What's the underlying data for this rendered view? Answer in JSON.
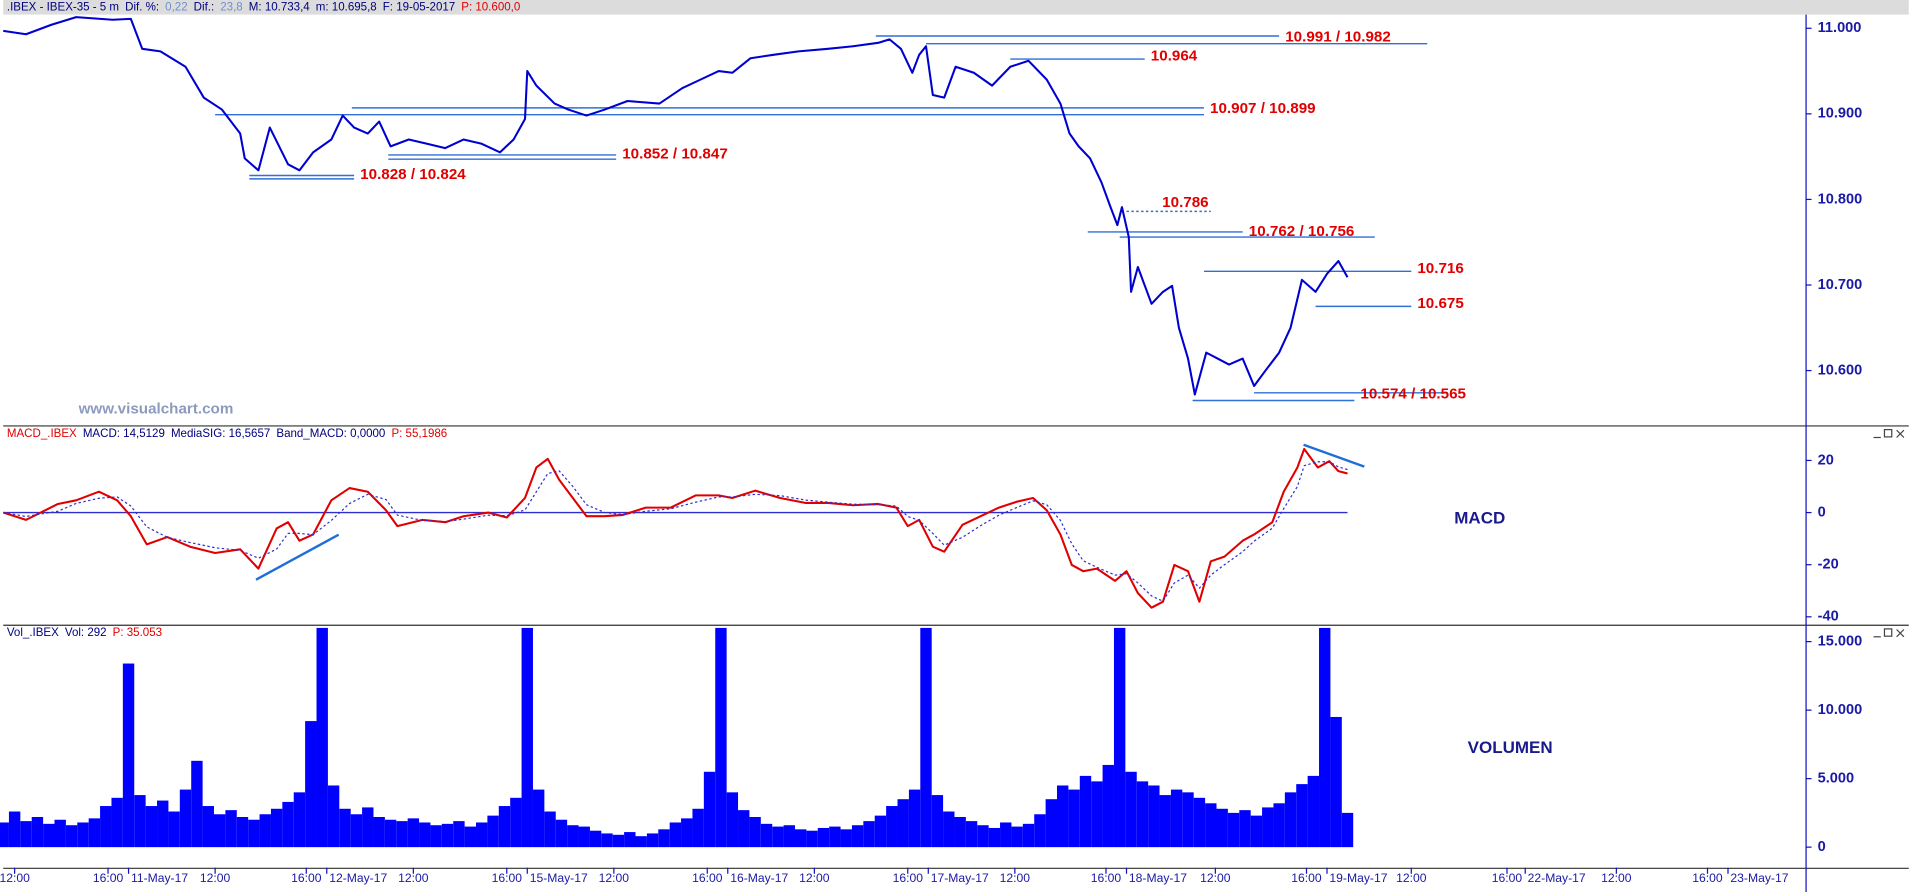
{
  "chart_data": [
    {
      "type": "line",
      "header": [
        {
          "text": ".IBEX - IBEX-35 -  5 m",
          "color": "#000080"
        },
        {
          "text": "Dif. %:",
          "color": "#000080"
        },
        {
          "text": "0,22",
          "color": "#6f8fcf"
        },
        {
          "text": "Dif.:",
          "color": "#000080"
        },
        {
          "text": "23,8",
          "color": "#6f8fcf"
        },
        {
          "text": "M: 10.733,4",
          "color": "#000080"
        },
        {
          "text": "m: 10.695,8",
          "color": "#000080"
        },
        {
          "text": "F: 19-05-2017",
          "color": "#000080"
        },
        {
          "text": "P: 10.600,0",
          "color": "#e00000"
        }
      ],
      "watermark": "www.visualchart.com",
      "xlim": [
        -0.5,
        78.6
      ],
      "ylim": [
        10536,
        11016
      ],
      "yticks": [
        {
          "value": 10600,
          "label": "10.600"
        },
        {
          "value": 10700,
          "label": "10.700"
        },
        {
          "value": 10800,
          "label": "10.800"
        },
        {
          "value": 10900,
          "label": "10.900"
        },
        {
          "value": 11000,
          "label": "11.000"
        }
      ],
      "x": [
        -0.5,
        0.5,
        1.6,
        2.7,
        4.3,
        5.1,
        5.6,
        6.4,
        7.5,
        8.3,
        9.1,
        9.9,
        10.1,
        10.7,
        11.2,
        12.0,
        12.5,
        13.1,
        13.9,
        14.4,
        14.9,
        15.5,
        16.0,
        16.5,
        17.3,
        18.1,
        18.9,
        19.7,
        20.5,
        21.3,
        21.9,
        22.4,
        22.5,
        22.9,
        23.7,
        24.3,
        25.1,
        25.9,
        26.9,
        28.3,
        29.3,
        30.1,
        30.9,
        31.5,
        32.3,
        33.3,
        34.4,
        35.7,
        36.8,
        37.9,
        38.4,
        38.9,
        39.4,
        39.7,
        40.0,
        40.3,
        40.8,
        41.3,
        42.1,
        42.9,
        43.7,
        44.5,
        45.3,
        45.9,
        46.3,
        46.7,
        47.2,
        47.7,
        48.1,
        48.4,
        48.6,
        48.9,
        49.0,
        49.3,
        49.9,
        50.4,
        50.8,
        51.1,
        51.5,
        51.8,
        52.3,
        52.8,
        53.3,
        53.9,
        54.4,
        54.9,
        55.5,
        56.0,
        56.5,
        57.1,
        57.6,
        58.1,
        58.5
      ],
      "series": [
        {
          "color": "#0000d0",
          "values": [
            10997,
            10993,
            11004,
            11013,
            11010,
            11011,
            10976,
            10973,
            10955,
            10919,
            10905,
            10877,
            10848,
            10834,
            10884,
            10841,
            10834,
            10855,
            10870,
            10898,
            10884,
            10877,
            10891,
            10862,
            10870,
            10865,
            10860,
            10870,
            10865,
            10855,
            10870,
            10894,
            10950,
            10933,
            10912,
            10905,
            10898,
            10905,
            10915,
            10912,
            10930,
            10940,
            10950,
            10948,
            10965,
            10969,
            10973,
            10976,
            10979,
            10983,
            10987,
            10976,
            10948,
            10969,
            10979,
            10922,
            10919,
            10955,
            10948,
            10933,
            10955,
            10962,
            10940,
            10912,
            10877,
            10862,
            10848,
            10820,
            10791,
            10770,
            10791,
            10756,
            10692,
            10721,
            10678,
            10692,
            10699,
            10650,
            10614,
            10572,
            10621,
            10614,
            10607,
            10614,
            10582,
            10600,
            10621,
            10650,
            10706,
            10692,
            10713,
            10728,
            10709
          ]
        }
      ],
      "level_color": "#2f6fd6",
      "level_label_color": "#e00000",
      "levels": [
        {
          "label": "10.991 / 10.982",
          "values": [
            10991,
            10982
          ],
          "from": [
            37.8,
            40.0
          ],
          "to": [
            55.5,
            62.0
          ]
        },
        {
          "label": "10.964",
          "values": [
            10964
          ],
          "from": [
            43.7
          ],
          "to": [
            49.6
          ]
        },
        {
          "label": "10.907 / 10.899",
          "values": [
            10907,
            10899
          ],
          "from": [
            14.8,
            8.8
          ],
          "to": [
            52.2,
            52.2
          ]
        },
        {
          "label": "10.852 / 10.847",
          "values": [
            10852,
            10847
          ],
          "from": [
            16.4,
            16.4
          ],
          "to": [
            26.4,
            26.4
          ]
        },
        {
          "label": "10.828 / 10.824",
          "values": [
            10828,
            10824
          ],
          "from": [
            10.3,
            10.3
          ],
          "to": [
            14.9,
            14.9
          ]
        },
        {
          "label": "10.786",
          "values": [
            10786
          ],
          "from": [
            48.8
          ],
          "to": [
            52.5
          ],
          "dotted": true
        },
        {
          "label": "10.762 / 10.756",
          "values": [
            10762,
            10756
          ],
          "from": [
            47.1,
            48.5
          ],
          "to": [
            53.9,
            59.7
          ]
        },
        {
          "label": "10.716",
          "values": [
            10716
          ],
          "from": [
            52.2
          ],
          "to": [
            61.3
          ]
        },
        {
          "label": "10.675",
          "values": [
            10675
          ],
          "from": [
            57.1
          ],
          "to": [
            61.3
          ]
        },
        {
          "label": "10.574 / 10.565",
          "values": [
            10574,
            10565
          ],
          "from": [
            54.4,
            51.7
          ],
          "to": [
            62.9,
            58.8
          ]
        }
      ]
    },
    {
      "type": "line",
      "header": [
        {
          "text": "MACD_.IBEX",
          "color": "#e00000"
        },
        {
          "text": "MACD: 14,5129",
          "color": "#000080"
        },
        {
          "text": "MediaSIG: 16,5657",
          "color": "#000080"
        },
        {
          "text": "Band_MACD: 0,0000",
          "color": "#000080"
        },
        {
          "text": "P: 55,1986",
          "color": "#e00000"
        }
      ],
      "label": "MACD",
      "xlim": [
        -0.5,
        78.6
      ],
      "ylim": [
        -43,
        33
      ],
      "yticks": [
        -40,
        -20,
        0,
        20
      ],
      "band_line": 0,
      "band_color": "#2f2fd0",
      "x": [
        -0.5,
        0.5,
        1.9,
        2.7,
        3.7,
        4.5,
        5.1,
        5.8,
        6.7,
        7.7,
        8.8,
        9.9,
        10.7,
        11.5,
        12.0,
        12.5,
        13.1,
        13.9,
        14.7,
        15.5,
        16.3,
        16.8,
        17.9,
        18.9,
        19.7,
        20.8,
        21.6,
        22.4,
        22.9,
        23.4,
        23.9,
        24.5,
        25.1,
        25.9,
        26.7,
        27.7,
        28.8,
        29.9,
        30.9,
        31.5,
        32.5,
        33.6,
        34.7,
        35.7,
        36.8,
        37.9,
        38.7,
        39.2,
        39.7,
        40.3,
        40.8,
        41.6,
        42.4,
        43.2,
        44.0,
        44.7,
        45.3,
        45.9,
        46.4,
        46.9,
        47.5,
        48.3,
        48.8,
        49.3,
        49.9,
        50.4,
        50.9,
        51.5,
        52.0,
        52.5,
        53.1,
        53.9,
        54.4,
        55.2,
        55.7,
        56.3,
        56.6,
        57.2,
        57.7,
        58.1,
        58.5
      ],
      "series": [
        {
          "color": "#e00000",
          "values": [
            0,
            -2.8,
            3.3,
            4.7,
            8.0,
            4.7,
            -1.4,
            -12.2,
            -9.4,
            -13.1,
            -15.5,
            -14.1,
            -21.5,
            -6.1,
            -3.7,
            -10.8,
            -8.4,
            4.7,
            9.4,
            8.0,
            0.9,
            -5.2,
            -2.8,
            -3.7,
            -1.4,
            0,
            -1.9,
            5.6,
            17.3,
            20.6,
            12.6,
            5.6,
            -1.4,
            -1.4,
            -0.9,
            1.9,
            1.9,
            6.6,
            6.6,
            5.6,
            8.4,
            5.6,
            3.7,
            3.7,
            2.8,
            3.3,
            1.9,
            -5.2,
            -2.8,
            -13.1,
            -15.0,
            -4.7,
            -1.4,
            1.9,
            4.2,
            5.6,
            0.9,
            -8.4,
            -20.1,
            -22.5,
            -21.5,
            -26.2,
            -22.5,
            -30.9,
            -36.5,
            -34.2,
            -20.1,
            -22.5,
            -34.2,
            -18.7,
            -16.9,
            -10.8,
            -8.4,
            -3.7,
            8.0,
            17.3,
            24.4,
            17.3,
            19.7,
            15.9,
            15.0
          ]
        },
        {
          "color": "#2f2fd0",
          "style": "dotted",
          "values": [
            0,
            -1.5,
            0.5,
            3.5,
            5.5,
            6.0,
            2.5,
            -5.5,
            -9.5,
            -11.5,
            -13.5,
            -14.5,
            -17.5,
            -14.0,
            -8.0,
            -8.0,
            -8.5,
            -3.0,
            3.5,
            7.0,
            5.0,
            -1.0,
            -3.0,
            -3.5,
            -2.5,
            -1.0,
            -1.2,
            1.0,
            8.0,
            15.0,
            16.0,
            10.0,
            3.0,
            0,
            -0.8,
            0.5,
            1.5,
            4.0,
            6.0,
            6.0,
            7.0,
            6.5,
            4.8,
            4.0,
            3.2,
            3.0,
            2.5,
            -1.5,
            -3.0,
            -8.0,
            -12.5,
            -9.5,
            -5.0,
            -1.0,
            2.0,
            4.5,
            3.0,
            -3.0,
            -12.0,
            -18.5,
            -21.0,
            -24.0,
            -23.5,
            -27.0,
            -32.0,
            -34.0,
            -27.0,
            -24.0,
            -29.0,
            -24.0,
            -20.0,
            -15.0,
            -11.0,
            -6.0,
            1.5,
            10.0,
            18.0,
            19.5,
            19.5,
            17.5,
            16.5
          ]
        }
      ]
    },
    {
      "type": "bar",
      "header": [
        {
          "text": "Vol_.IBEX",
          "color": "#000080"
        },
        {
          "text": "Vol: 292",
          "color": "#000080"
        },
        {
          "text": "P: 35.053",
          "color": "#e00000"
        }
      ],
      "label": "VOLUMEN",
      "color": "#0000ff",
      "xlim": [
        -0.5,
        78.6
      ],
      "ylim": [
        -1500,
        16150
      ],
      "yticks": [
        0,
        {
          "value": 5000,
          "label": "5.000"
        },
        {
          "value": 10000,
          "label": "10.000"
        },
        {
          "value": 15000,
          "label": "15.000"
        }
      ],
      "xticks": [
        {
          "value": 0,
          "label": "12:00"
        },
        {
          "value": 4.1,
          "label": "16:00"
        },
        {
          "value": 5.0,
          "label": "11-May-17"
        },
        {
          "value": 8.8,
          "label": "12:00"
        },
        {
          "value": 12.8,
          "label": "16:00"
        },
        {
          "value": 13.7,
          "label": "12-May-17"
        },
        {
          "value": 17.5,
          "label": "12:00"
        },
        {
          "value": 21.6,
          "label": "16:00"
        },
        {
          "value": 22.5,
          "label": "15-May-17"
        },
        {
          "value": 26.3,
          "label": "12:00"
        },
        {
          "value": 30.4,
          "label": "16:00"
        },
        {
          "value": 31.3,
          "label": "16-May-17"
        },
        {
          "value": 35.1,
          "label": "12:00"
        },
        {
          "value": 39.2,
          "label": "16:00"
        },
        {
          "value": 40.1,
          "label": "17-May-17"
        },
        {
          "value": 43.9,
          "label": "12:00"
        },
        {
          "value": 47.9,
          "label": "16:00"
        },
        {
          "value": 48.8,
          "label": "18-May-17"
        },
        {
          "value": 52.7,
          "label": "12:00"
        },
        {
          "value": 56.7,
          "label": "16:00"
        },
        {
          "value": 57.6,
          "label": "19-May-17"
        },
        {
          "value": 61.3,
          "label": "12:00"
        },
        {
          "value": 65.5,
          "label": "16:00"
        },
        {
          "value": 66.3,
          "label": "22-May-17"
        },
        {
          "value": 70.3,
          "label": "12:00"
        },
        {
          "value": 74.3,
          "label": "16:00"
        },
        {
          "value": 75.2,
          "label": "23-May-17"
        }
      ],
      "x": [
        -0.5,
        0,
        0.5,
        1,
        1.5,
        2,
        2.5,
        3,
        3.5,
        4,
        4.5,
        5,
        5.5,
        6,
        6.5,
        7,
        7.5,
        8,
        8.5,
        9,
        9.5,
        10,
        10.5,
        11,
        11.5,
        12,
        12.5,
        13,
        13.5,
        14,
        14.5,
        15,
        15.5,
        16,
        16.5,
        17,
        17.5,
        18,
        18.5,
        19,
        19.5,
        20,
        20.5,
        21,
        21.5,
        22,
        22.5,
        23,
        23.5,
        24,
        24.5,
        25,
        25.5,
        26,
        26.5,
        27,
        27.5,
        28,
        28.5,
        29,
        29.5,
        30,
        30.5,
        31,
        31.5,
        32,
        32.5,
        33,
        33.5,
        34,
        34.5,
        35,
        35.5,
        36,
        36.5,
        37,
        37.5,
        38,
        38.5,
        39,
        39.5,
        40,
        40.5,
        41,
        41.5,
        42,
        42.5,
        43,
        43.5,
        44,
        44.5,
        45,
        45.5,
        46,
        46.5,
        47,
        47.5,
        48,
        48.5,
        49,
        49.5,
        50,
        50.5,
        51,
        51.5,
        52,
        52.5,
        53,
        53.5,
        54,
        54.5,
        55,
        55.5,
        56,
        56.5,
        57,
        57.5,
        58,
        58.5
      ],
      "values": [
        1800,
        2600,
        1900,
        2200,
        1700,
        2000,
        1600,
        1800,
        2100,
        3000,
        3600,
        13400,
        3800,
        3000,
        3400,
        2600,
        4200,
        6300,
        3000,
        2400,
        2700,
        2200,
        2000,
        2400,
        2800,
        3300,
        4000,
        9200,
        16000,
        4500,
        2800,
        2400,
        2900,
        2200,
        2000,
        1900,
        2100,
        1800,
        1600,
        1700,
        1900,
        1500,
        1800,
        2300,
        3000,
        3600,
        16000,
        4200,
        2600,
        2000,
        1600,
        1500,
        1200,
        1000,
        900,
        1100,
        800,
        1000,
        1300,
        1800,
        2100,
        2800,
        5500,
        16000,
        4000,
        2700,
        2200,
        1700,
        1500,
        1600,
        1300,
        1200,
        1400,
        1500,
        1300,
        1600,
        1900,
        2300,
        3000,
        3500,
        4200,
        16000,
        3800,
        2600,
        2200,
        1900,
        1600,
        1400,
        1800,
        1500,
        1700,
        2400,
        3500,
        4500,
        4200,
        5200,
        4800,
        6000,
        16000,
        5500,
        4800,
        4500,
        3800,
        4200,
        4000,
        3600,
        3200,
        2800,
        2500,
        2700,
        2300,
        2900,
        3200,
        4000,
        4600,
        5200,
        16000,
        9500,
        2500
      ]
    }
  ]
}
